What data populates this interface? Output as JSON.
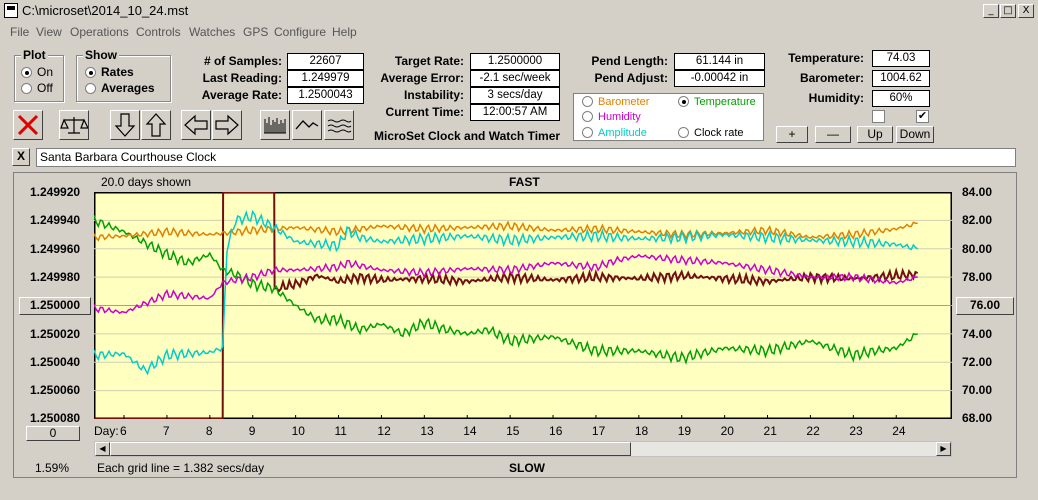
{
  "window": {
    "title": "C:\\microset\\2014_10_24.mst",
    "min_label": "_",
    "max_label": "□",
    "close_label": "X"
  },
  "menu": [
    "File",
    "View",
    "Operations",
    "Controls",
    "Watches",
    "GPS",
    "Configure",
    "Help"
  ],
  "plot_group": {
    "title": "Plot",
    "on": "On",
    "off": "Off"
  },
  "show_group": {
    "title": "Show",
    "rates": "Rates",
    "averages": "Averages"
  },
  "stats": {
    "samples_label": "# of Samples:",
    "samples": "22607",
    "last_label": "Last Reading:",
    "last": "1.249979",
    "avg_rate_label": "Average Rate:",
    "avg_rate": "1.2500043",
    "target_label": "Target Rate:",
    "target": "1.2500000",
    "avg_err_label": "Average Error:",
    "avg_err": "-2.1 sec/week",
    "instab_label": "Instability:",
    "instab": "3 secs/day",
    "time_label": "Current Time:",
    "time": "12:00:57 AM",
    "pend_len_label": "Pend Length:",
    "pend_len": "61.144 in",
    "pend_adj_label": "Pend Adjust:",
    "pend_adj": "-0.00042 in",
    "temp_label": "Temperature:",
    "temp": "74.03",
    "baro_label": "Barometer:",
    "baro": "1004.62",
    "hum_label": "Humidity:",
    "hum": "60%"
  },
  "app_caption": "MicroSet Clock and Watch Timer",
  "sensor_options": {
    "barometer": "Barometer",
    "temperature": "Temperature",
    "humidity": "Humidity",
    "amplitude": "Amplitude",
    "clock_rate": "Clock rate"
  },
  "colors": {
    "barometer": "#e08000",
    "temperature": "#00a000",
    "humidity": "#cc00cc",
    "amplitude": "#00cccc",
    "rate": "#701010",
    "plot_bg": "#ffffc0"
  },
  "scale_buttons": {
    "plus": "+",
    "minus": "—",
    "up": "Up",
    "down": "Down"
  },
  "clock_name": "Santa Barbara Courthouse Clock",
  "close_x": "X",
  "graph": {
    "days_shown": "20.0 days shown",
    "fast": "FAST",
    "slow": "SLOW",
    "left_center": "1.250000",
    "right_center": "76.00",
    "bottom_btn": "0",
    "percent": "1.59%",
    "grid_note": "Each grid line = 1.382 secs/day",
    "day_label": "Day:",
    "left_ticks": [
      "1.249920",
      "1.249940",
      "1.249960",
      "1.249980",
      "1.250020",
      "1.250040",
      "1.250060",
      "1.250080"
    ],
    "right_ticks": [
      "84.00",
      "82.00",
      "80.00",
      "78.00",
      "74.00",
      "72.00",
      "70.00",
      "68.00"
    ],
    "days": [
      "6",
      "7",
      "8",
      "9",
      "10",
      "11",
      "12",
      "13",
      "14",
      "15",
      "16",
      "17",
      "18",
      "19",
      "20",
      "21",
      "22",
      "23",
      "24"
    ]
  },
  "chart_data": {
    "type": "line",
    "x_label": "Day:",
    "x_range": [
      5.3,
      25.3
    ],
    "left_axis": {
      "range": [
        1.24992,
        1.25008
      ],
      "inverted": true
    },
    "right_axis": {
      "range": [
        68.0,
        84.0
      ]
    },
    "series": [
      {
        "key": "rate",
        "axis": "left",
        "x": [
          5.3,
          8.3,
          8.31,
          9.5,
          9.51,
          10,
          10.5,
          11,
          11.5,
          12,
          13,
          14,
          15,
          16,
          17,
          18,
          19,
          20,
          21,
          22,
          23,
          24,
          24.5
        ],
        "y": [
          1.25008,
          1.25008,
          1.24992,
          1.24992,
          1.249988,
          1.249985,
          1.249979,
          1.249983,
          1.24998,
          1.249982,
          1.249981,
          1.249983,
          1.24998,
          1.249982,
          1.24998,
          1.249981,
          1.249979,
          1.249981,
          1.249983,
          1.24998,
          1.249981,
          1.249979,
          1.249978
        ]
      },
      {
        "key": "temperature",
        "axis": "right",
        "x": [
          5.3,
          6,
          7,
          7.5,
          8,
          8.3,
          8.6,
          9,
          9.5,
          10,
          10.5,
          11,
          11.5,
          12,
          12.5,
          13,
          13.5,
          14,
          14.5,
          15,
          16,
          17,
          18,
          19,
          20,
          21,
          22,
          23,
          23.5,
          24,
          24.5
        ],
        "y": [
          82.0,
          81.2,
          79.6,
          79.0,
          79.6,
          78.5,
          78.2,
          77.5,
          77.2,
          76.0,
          75.0,
          75.0,
          74.3,
          74.7,
          74.0,
          74.8,
          74.3,
          74.0,
          74.3,
          73.5,
          73.8,
          72.8,
          72.8,
          72.3,
          73.0,
          72.8,
          73.5,
          72.5,
          72.8,
          73.0,
          74.0
        ]
      },
      {
        "key": "barometer",
        "axis": "right",
        "x": [
          5.3,
          6,
          7,
          8,
          9,
          10,
          11,
          12,
          13,
          14,
          15,
          16,
          17,
          18,
          19,
          20,
          21,
          22,
          23,
          24,
          24.5
        ],
        "y": [
          80.8,
          80.9,
          81.2,
          81.0,
          81.3,
          81.5,
          81.2,
          81.6,
          81.4,
          81.5,
          81.6,
          81.3,
          81.4,
          81.2,
          81.0,
          81.1,
          81.3,
          80.8,
          81.0,
          81.4,
          81.8
        ]
      },
      {
        "key": "amplitude",
        "axis": "right",
        "x": [
          5.3,
          6,
          6.5,
          7,
          8,
          8.3,
          8.4,
          8.6,
          9,
          9.5,
          10,
          11,
          11.2,
          11.5,
          12,
          13,
          14,
          15,
          16,
          17,
          18,
          19,
          20,
          21,
          22,
          23,
          24,
          24.5
        ],
        "y": [
          72.5,
          72.6,
          71.4,
          72.5,
          72.7,
          73.0,
          80.0,
          82.0,
          82.3,
          81.5,
          80.5,
          80.2,
          81.3,
          80.8,
          80.5,
          80.7,
          80.9,
          80.6,
          80.8,
          80.9,
          80.7,
          80.8,
          81.0,
          80.8,
          80.6,
          80.5,
          80.3,
          80.0
        ]
      },
      {
        "key": "humidity",
        "axis": "right",
        "x": [
          5.3,
          6,
          7,
          8,
          8.3,
          8.6,
          9,
          9.5,
          10,
          11,
          11.2,
          12,
          13,
          14,
          15,
          16,
          17,
          17.5,
          18,
          19,
          20,
          21,
          22,
          23,
          24,
          24.5
        ],
        "y": [
          75.8,
          75.5,
          76.8,
          76.5,
          77.6,
          77.8,
          78.0,
          78.5,
          78.5,
          78.7,
          79.0,
          78.5,
          78.3,
          78.6,
          78.5,
          79.0,
          78.7,
          79.2,
          79.5,
          79.2,
          79.0,
          78.5,
          78.0,
          78.0,
          77.6,
          78.0
        ]
      }
    ]
  }
}
